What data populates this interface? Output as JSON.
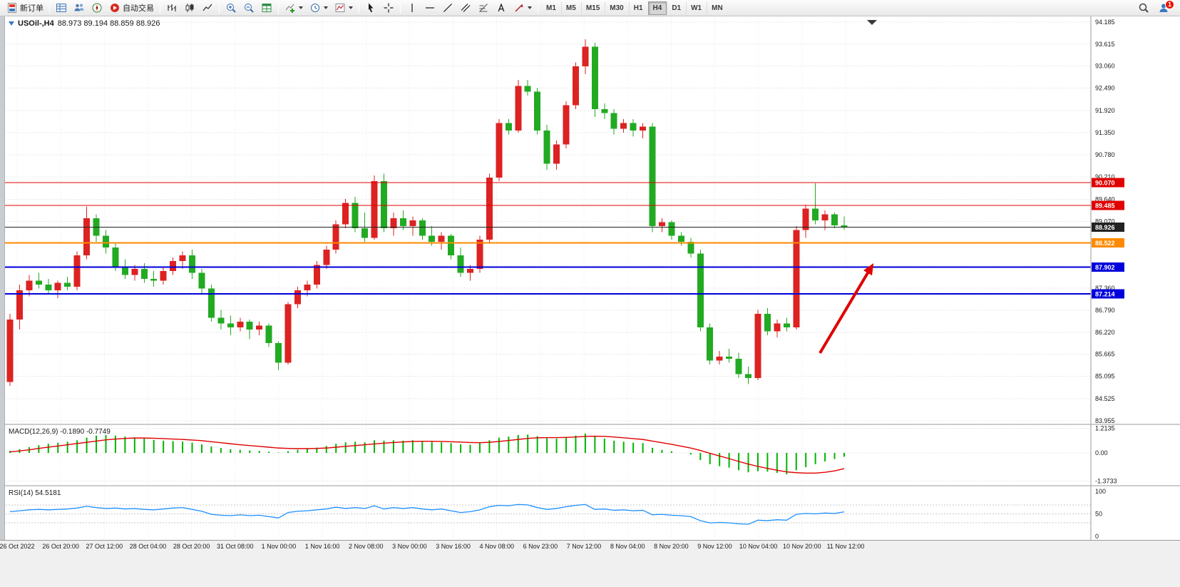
{
  "toolbar": {
    "new_order_label": "新订单",
    "auto_trading_label": "自动交易",
    "timeframes": [
      "M1",
      "M5",
      "M15",
      "M30",
      "H1",
      "H4",
      "D1",
      "W1",
      "MN"
    ],
    "active_timeframe": "H4",
    "notification_badge": "1",
    "icons": [
      "new-order-icon",
      "market-watch-icon",
      "data-window-icon",
      "navigator-icon",
      "auto-trading-icon",
      "bar-chart-icon",
      "candlestick-icon",
      "line-chart-icon",
      "zoom-in-icon",
      "zoom-out-icon",
      "tile-windows-icon",
      "add-indicator-icon",
      "periods-clock-icon",
      "template-icon",
      "cursor-icon",
      "crosshair-icon",
      "vertical-line-icon",
      "horizontal-line-icon",
      "trendline-icon",
      "channel-icon",
      "fibonacci-icon",
      "text-tool-icon",
      "arrows-tool-icon",
      "search-icon",
      "community-icon"
    ]
  },
  "chart": {
    "title_symbol": "USOil-,H4",
    "title_ohlc": "88.973 89.194 88.859 88.926",
    "price_axis_labels": [
      "94.185",
      "93.615",
      "93.060",
      "92.490",
      "91.920",
      "91.350",
      "90.780",
      "90.210",
      "89.640",
      "89.070",
      "88.500",
      "87.930",
      "87.360",
      "86.790",
      "86.220",
      "85.665",
      "85.095",
      "84.525",
      "83.955"
    ],
    "time_axis_labels": [
      "26 Oct 2022",
      "26 Oct 20:00",
      "27 Oct 12:00",
      "28 Oct 04:00",
      "28 Oct 20:00",
      "31 Oct 08:00",
      "1 Nov 00:00",
      "1 Nov 16:00",
      "2 Nov 08:00",
      "3 Nov 00:00",
      "3 Nov 16:00",
      "4 Nov 08:00",
      "6 Nov 23:00",
      "7 Nov 12:00",
      "8 Nov 04:00",
      "8 Nov 20:00",
      "9 Nov 12:00",
      "10 Nov 04:00",
      "10 Nov 20:00",
      "11 Nov 12:00"
    ],
    "price_lines": [
      {
        "price": 90.07,
        "label": "90.070",
        "color": "#e00000",
        "width": 1
      },
      {
        "price": 89.485,
        "label": "89.485",
        "color": "#e00000",
        "width": 1
      },
      {
        "price": 88.926,
        "label": "88.926",
        "color": "#222222",
        "width": 1
      },
      {
        "price": 88.522,
        "label": "88.522",
        "color": "#ff8a00",
        "width": 2
      },
      {
        "price": 87.902,
        "label": "87.902",
        "color": "#0000dd",
        "width": 2
      },
      {
        "price": 87.214,
        "label": "87.214",
        "color": "#0000dd",
        "width": 2
      }
    ],
    "colors": {
      "up_candle": "#dd2222",
      "down_candle": "#22aa22",
      "macd_hist": "#00b400",
      "macd_signal": "#e00000",
      "rsi_line": "#1e90ff",
      "arrow": "#e00000",
      "grid": "#d9d9d9",
      "axis_text": "#1a1a1a"
    }
  },
  "chart_data": {
    "type": "candlestick",
    "symbol": "USOil-",
    "period": "H4",
    "note_color_convention": "red = up candle, green = down candle",
    "ylim": [
      83.955,
      94.185
    ],
    "ohlc": [
      [
        84.95,
        86.7,
        84.85,
        86.55
      ],
      [
        86.55,
        87.45,
        86.3,
        87.3
      ],
      [
        87.3,
        87.7,
        87.15,
        87.55
      ],
      [
        87.55,
        87.75,
        87.35,
        87.45
      ],
      [
        87.45,
        87.6,
        87.2,
        87.3
      ],
      [
        87.3,
        87.55,
        87.1,
        87.5
      ],
      [
        87.5,
        87.65,
        87.3,
        87.4
      ],
      [
        87.4,
        88.3,
        87.3,
        88.2
      ],
      [
        88.2,
        89.45,
        88.1,
        89.15
      ],
      [
        89.15,
        89.25,
        88.55,
        88.7
      ],
      [
        88.7,
        88.85,
        88.25,
        88.4
      ],
      [
        88.4,
        88.5,
        87.8,
        87.9
      ],
      [
        87.9,
        88.1,
        87.6,
        87.7
      ],
      [
        87.7,
        87.95,
        87.55,
        87.85
      ],
      [
        87.85,
        88.0,
        87.5,
        87.6
      ],
      [
        87.6,
        87.8,
        87.4,
        87.55
      ],
      [
        87.55,
        87.9,
        87.45,
        87.8
      ],
      [
        87.8,
        88.15,
        87.7,
        88.05
      ],
      [
        88.05,
        88.3,
        87.85,
        88.2
      ],
      [
        88.2,
        88.35,
        87.6,
        87.75
      ],
      [
        87.75,
        87.85,
        87.2,
        87.35
      ],
      [
        87.35,
        87.45,
        86.5,
        86.6
      ],
      [
        86.6,
        86.8,
        86.3,
        86.45
      ],
      [
        86.45,
        86.65,
        86.15,
        86.35
      ],
      [
        86.35,
        86.6,
        86.25,
        86.5
      ],
      [
        86.5,
        86.55,
        86.05,
        86.3
      ],
      [
        86.3,
        86.5,
        86.15,
        86.4
      ],
      [
        86.4,
        86.45,
        85.85,
        85.95
      ],
      [
        85.95,
        86.0,
        85.25,
        85.45
      ],
      [
        85.45,
        87.0,
        85.4,
        86.95
      ],
      [
        86.95,
        87.4,
        86.85,
        87.3
      ],
      [
        87.3,
        87.55,
        87.15,
        87.45
      ],
      [
        87.45,
        88.05,
        87.35,
        87.95
      ],
      [
        87.95,
        88.45,
        87.85,
        88.35
      ],
      [
        88.35,
        89.1,
        88.25,
        89.0
      ],
      [
        89.0,
        89.65,
        88.9,
        89.55
      ],
      [
        89.55,
        89.7,
        88.8,
        88.9
      ],
      [
        88.9,
        89.3,
        88.55,
        88.65
      ],
      [
        88.65,
        90.25,
        88.6,
        90.1
      ],
      [
        90.1,
        90.3,
        88.8,
        88.9
      ],
      [
        88.9,
        89.3,
        88.7,
        89.15
      ],
      [
        89.15,
        89.35,
        88.85,
        88.95
      ],
      [
        88.95,
        89.2,
        88.7,
        89.1
      ],
      [
        89.1,
        89.15,
        88.6,
        88.7
      ],
      [
        88.7,
        88.95,
        88.45,
        88.55
      ],
      [
        88.55,
        88.8,
        88.35,
        88.7
      ],
      [
        88.7,
        88.75,
        88.1,
        88.2
      ],
      [
        88.2,
        88.4,
        87.65,
        87.75
      ],
      [
        87.75,
        87.95,
        87.55,
        87.85
      ],
      [
        87.85,
        88.7,
        87.75,
        88.6
      ],
      [
        88.6,
        90.3,
        88.5,
        90.2
      ],
      [
        90.2,
        91.7,
        90.1,
        91.6
      ],
      [
        91.6,
        91.7,
        91.3,
        91.4
      ],
      [
        91.4,
        92.7,
        91.35,
        92.55
      ],
      [
        92.55,
        92.7,
        92.3,
        92.4
      ],
      [
        92.4,
        92.5,
        91.3,
        91.4
      ],
      [
        91.4,
        91.55,
        90.4,
        90.55
      ],
      [
        90.55,
        91.15,
        90.4,
        91.05
      ],
      [
        91.05,
        92.15,
        90.95,
        92.05
      ],
      [
        92.05,
        93.15,
        91.95,
        93.05
      ],
      [
        93.05,
        93.75,
        92.85,
        93.55
      ],
      [
        93.55,
        93.65,
        91.75,
        91.95
      ],
      [
        91.95,
        92.1,
        91.7,
        91.85
      ],
      [
        91.85,
        91.95,
        91.3,
        91.45
      ],
      [
        91.45,
        91.7,
        91.35,
        91.6
      ],
      [
        91.6,
        91.7,
        91.25,
        91.4
      ],
      [
        91.4,
        91.6,
        91.2,
        91.5
      ],
      [
        91.5,
        91.6,
        88.8,
        88.95
      ],
      [
        88.95,
        89.15,
        88.8,
        89.05
      ],
      [
        89.05,
        89.1,
        88.6,
        88.7
      ],
      [
        88.7,
        88.8,
        88.45,
        88.55
      ],
      [
        88.55,
        88.65,
        88.15,
        88.25
      ],
      [
        88.25,
        88.35,
        86.25,
        86.35
      ],
      [
        86.35,
        86.45,
        85.4,
        85.5
      ],
      [
        85.5,
        85.75,
        85.4,
        85.6
      ],
      [
        85.6,
        85.8,
        85.45,
        85.55
      ],
      [
        85.55,
        85.7,
        85.05,
        85.15
      ],
      [
        85.15,
        85.35,
        84.9,
        85.05
      ],
      [
        85.05,
        86.8,
        85.0,
        86.7
      ],
      [
        86.7,
        86.85,
        86.15,
        86.25
      ],
      [
        86.25,
        86.55,
        86.1,
        86.45
      ],
      [
        86.45,
        86.6,
        86.25,
        86.35
      ],
      [
        86.35,
        88.95,
        86.3,
        88.85
      ],
      [
        88.85,
        89.5,
        88.65,
        89.4
      ],
      [
        89.4,
        90.05,
        89.0,
        89.1
      ],
      [
        89.1,
        89.35,
        88.85,
        89.25
      ],
      [
        89.25,
        89.3,
        88.9,
        88.97
      ],
      [
        88.973,
        89.194,
        88.859,
        88.926
      ]
    ],
    "macd": {
      "label": "MACD(12,26,9)",
      "values_label": "-0.1890 -0.7749",
      "axis": [
        "1.2135",
        "0.00",
        "-1.3733"
      ],
      "hist": [
        0.1,
        0.18,
        0.28,
        0.38,
        0.45,
        0.5,
        0.55,
        0.62,
        0.75,
        0.85,
        0.88,
        0.85,
        0.8,
        0.76,
        0.7,
        0.64,
        0.6,
        0.58,
        0.56,
        0.5,
        0.42,
        0.32,
        0.24,
        0.18,
        0.15,
        0.12,
        0.1,
        0.06,
        0.02,
        0.08,
        0.15,
        0.2,
        0.26,
        0.34,
        0.45,
        0.52,
        0.55,
        0.52,
        0.62,
        0.6,
        0.62,
        0.6,
        0.62,
        0.58,
        0.54,
        0.52,
        0.48,
        0.42,
        0.4,
        0.48,
        0.62,
        0.75,
        0.8,
        0.88,
        0.9,
        0.82,
        0.72,
        0.7,
        0.76,
        0.85,
        0.95,
        0.8,
        0.7,
        0.6,
        0.55,
        0.5,
        0.48,
        0.25,
        0.15,
        0.08,
        0.0,
        -0.08,
        -0.35,
        -0.55,
        -0.65,
        -0.72,
        -0.85,
        -0.95,
        -0.9,
        -0.92,
        -0.98,
        -1.05,
        -0.85,
        -0.7,
        -0.55,
        -0.42,
        -0.3,
        -0.19
      ],
      "signal": [
        0.05,
        0.1,
        0.15,
        0.22,
        0.28,
        0.34,
        0.4,
        0.46,
        0.52,
        0.58,
        0.64,
        0.68,
        0.71,
        0.73,
        0.73,
        0.72,
        0.7,
        0.68,
        0.66,
        0.63,
        0.6,
        0.55,
        0.5,
        0.45,
        0.4,
        0.36,
        0.32,
        0.28,
        0.24,
        0.22,
        0.21,
        0.21,
        0.22,
        0.24,
        0.28,
        0.32,
        0.36,
        0.4,
        0.44,
        0.48,
        0.51,
        0.54,
        0.56,
        0.57,
        0.57,
        0.56,
        0.55,
        0.53,
        0.51,
        0.5,
        0.52,
        0.56,
        0.61,
        0.66,
        0.71,
        0.74,
        0.75,
        0.75,
        0.76,
        0.78,
        0.81,
        0.82,
        0.81,
        0.78,
        0.74,
        0.7,
        0.66,
        0.58,
        0.5,
        0.42,
        0.33,
        0.24,
        0.12,
        -0.02,
        -0.15,
        -0.28,
        -0.42,
        -0.55,
        -0.66,
        -0.76,
        -0.85,
        -0.93,
        -0.97,
        -0.99,
        -0.99,
        -0.95,
        -0.88,
        -0.77
      ]
    },
    "rsi": {
      "label": "RSI(14)",
      "value_label": "54.5181",
      "axis": [
        "100",
        "50",
        "0"
      ],
      "levels": [
        70,
        50,
        30
      ],
      "values": [
        55,
        57,
        59,
        60,
        59,
        60,
        61,
        63,
        67,
        64,
        62,
        63,
        61,
        62,
        60,
        59,
        61,
        63,
        64,
        60,
        56,
        49,
        47,
        46,
        48,
        46,
        47,
        44,
        41,
        53,
        56,
        57,
        59,
        61,
        65,
        62,
        64,
        62,
        68,
        61,
        64,
        62,
        64,
        61,
        59,
        61,
        57,
        53,
        55,
        59,
        66,
        69,
        68,
        71,
        70,
        64,
        60,
        62,
        66,
        69,
        71,
        60,
        61,
        58,
        59,
        57,
        58,
        48,
        49,
        47,
        46,
        44,
        35,
        30,
        31,
        30,
        28,
        27,
        36,
        35,
        37,
        36,
        49,
        51,
        50,
        52,
        51,
        54.5
      ]
    }
  }
}
